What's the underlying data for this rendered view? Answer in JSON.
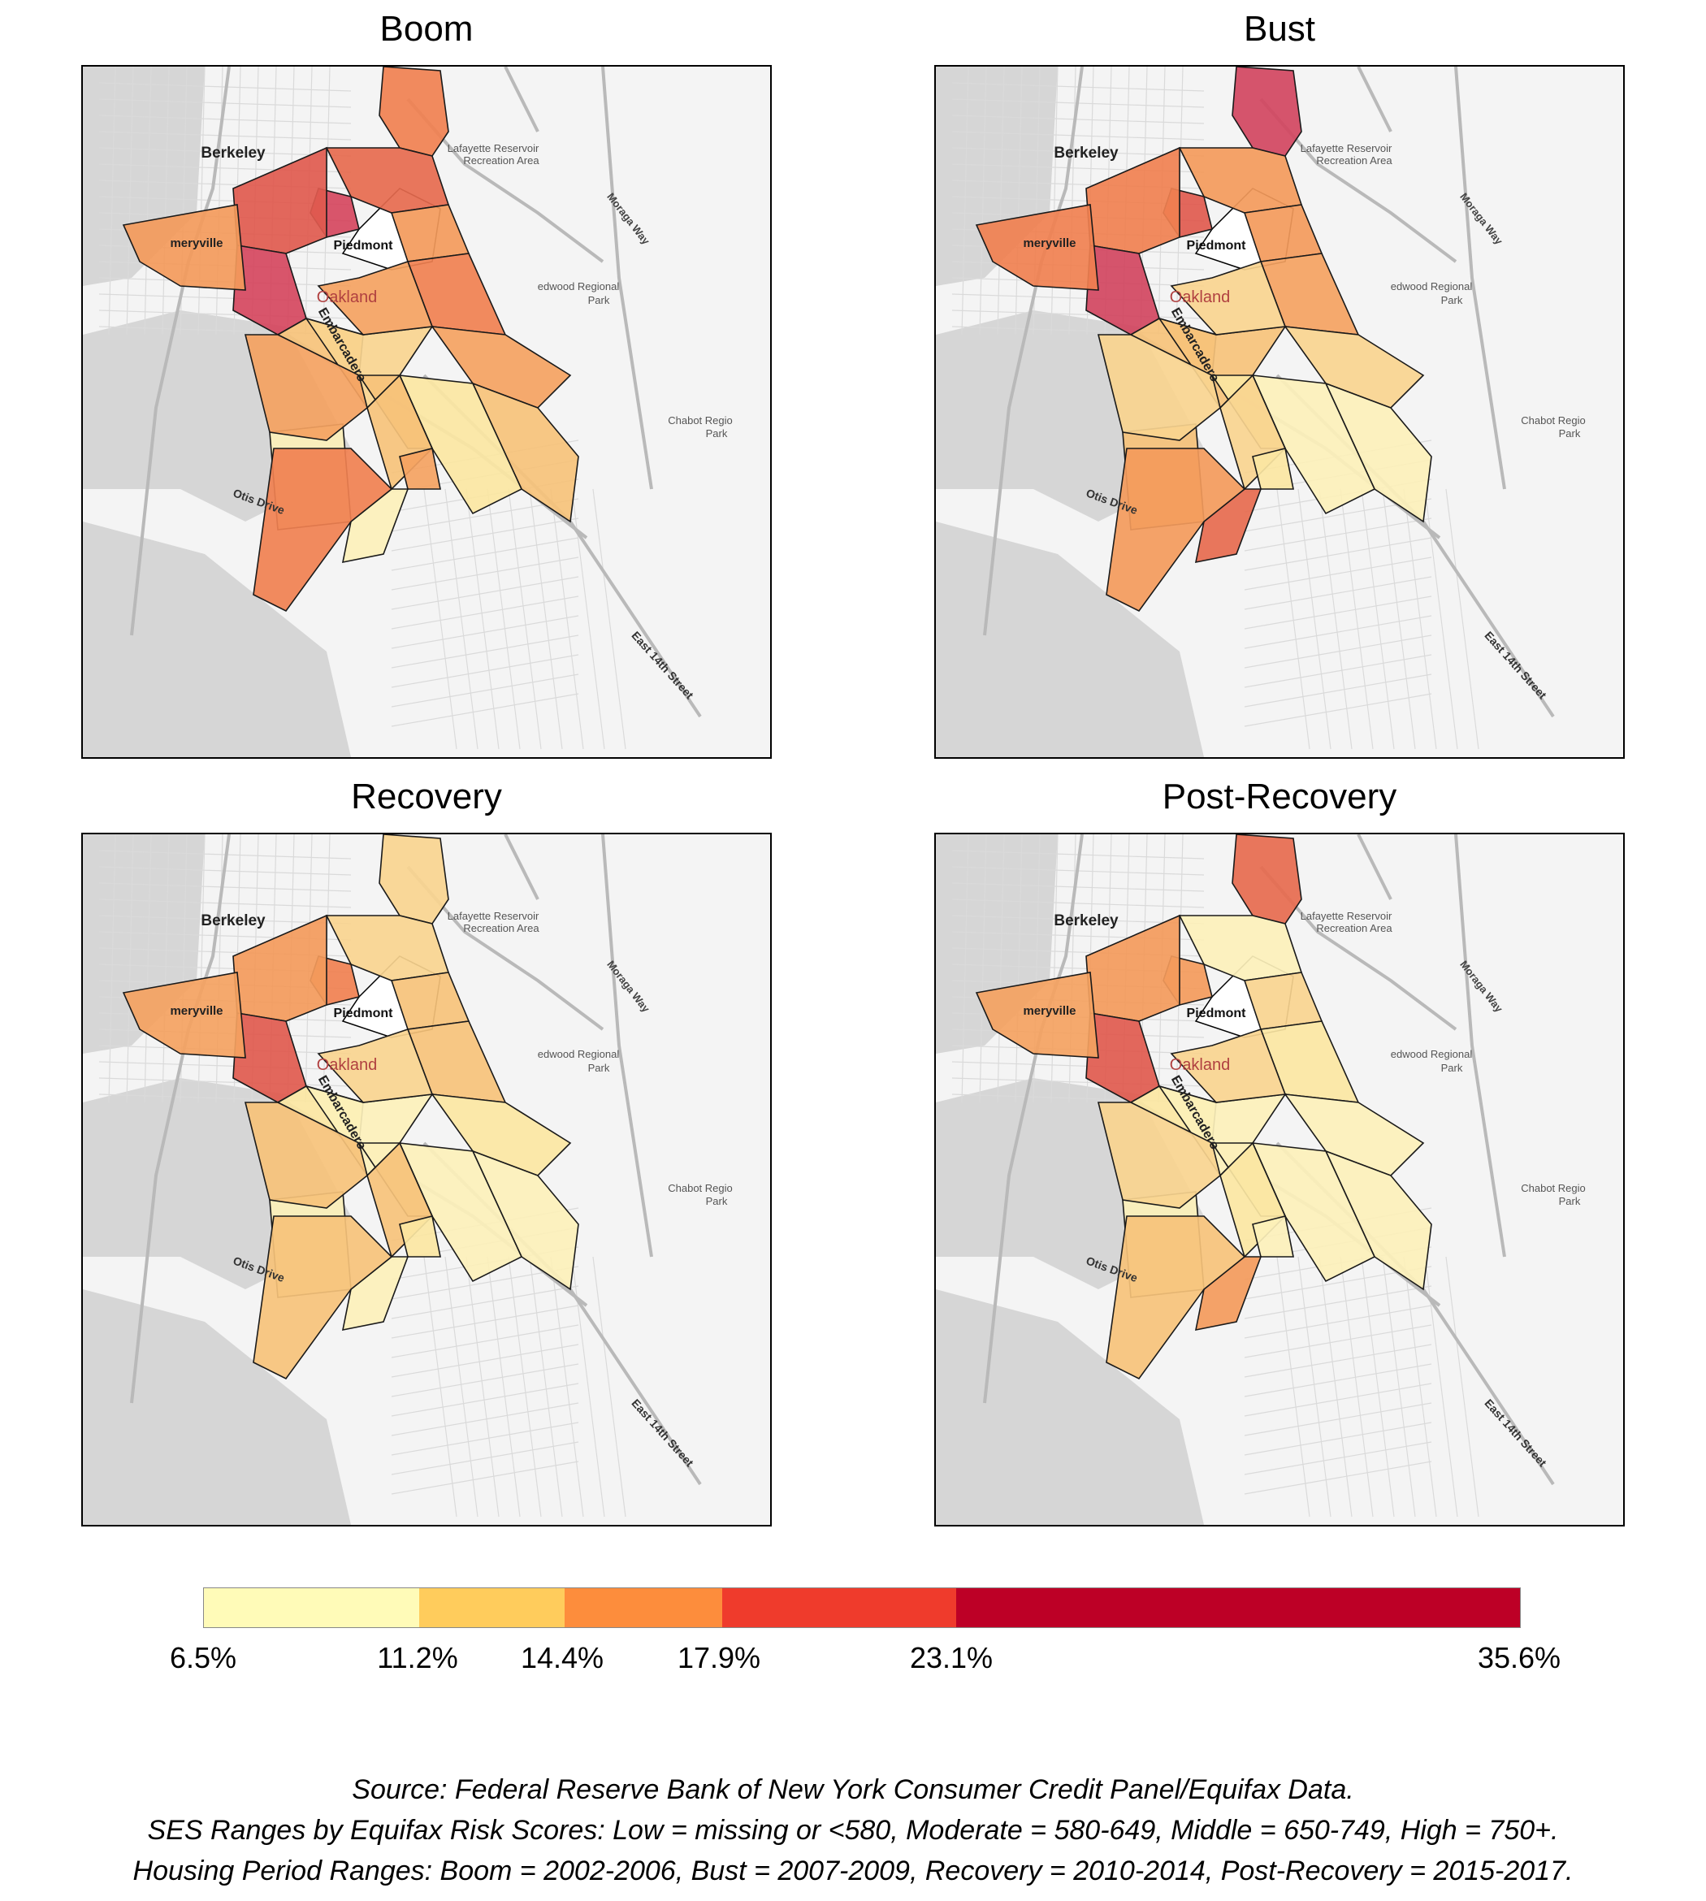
{
  "panels": [
    {
      "title": "Boom",
      "colors": [
        "#F08050",
        "#E66A4E",
        "#F39A5B",
        "#D5465E",
        "#F08050",
        "#F4A261",
        "#F6C27A",
        "#FBE6A2",
        "#E05A4E",
        "#D5465E",
        "#F39A5B",
        "#F6C27A",
        "#F8D48F",
        "#F4A261",
        "#F6C27A",
        "#F6C27A",
        "#F4A261",
        "#FCF0BA",
        "#FCF0BA",
        "#F4A261",
        "#F08050"
      ]
    },
    {
      "title": "Bust",
      "colors": [
        "#D14560",
        "#F39A5B",
        "#F39A5B",
        "#E05A4E",
        "#F4A261",
        "#F8D48F",
        "#FCF0BA",
        "#FCF0BA",
        "#F08050",
        "#D14560",
        "#F08050",
        "#F6C27A",
        "#F6C27A",
        "#F8D48F",
        "#FBE6A2",
        "#F8D48F",
        "#FBE6A2",
        "#E66A4E",
        "#F6C27A",
        "#F8D48F",
        "#F39A5B"
      ]
    },
    {
      "title": "Recovery",
      "colors": [
        "#F8D48F",
        "#F8D48F",
        "#F6C27A",
        "#F08050",
        "#F6C27A",
        "#FBE6A2",
        "#FCF0BA",
        "#FCF0BA",
        "#F39A5B",
        "#E05A4E",
        "#F4A261",
        "#FBE6A2",
        "#FCF0BA",
        "#F8D48F",
        "#FCF0BA",
        "#F6C27A",
        "#FBE6A2",
        "#FCF0BA",
        "#FCF0BA",
        "#F6C27A",
        "#F6C27A"
      ]
    },
    {
      "title": "Post-Recovery",
      "colors": [
        "#E66A4E",
        "#FCF0BA",
        "#F8D48F",
        "#F39A5B",
        "#FBE6A2",
        "#FCF0BA",
        "#FCF0BA",
        "#FCF0BA",
        "#F39A5B",
        "#E05A4E",
        "#F4A261",
        "#FBE6A2",
        "#FCF0BA",
        "#F8D48F",
        "#FCF0BA",
        "#FBE6A2",
        "#FCF0BA",
        "#F39A5B",
        "#FCF0BA",
        "#F8D48F",
        "#F6C27A"
      ]
    }
  ],
  "map_labels": {
    "berkeley": "Berkeley",
    "piedmont": "Piedmont",
    "emeryville": "meryville",
    "oakland": "Oakland",
    "lafayette_1": "Lafayette Reservoir",
    "lafayette_2": "Recreation Area",
    "moraga": "Moraga Way",
    "redwood_1": "edwood Regional",
    "redwood_2": "Park",
    "embarcadero": "Embarcadero",
    "otis": "Otis Drive",
    "chabot_1": "Chabot Regio",
    "chabot_2": "Park",
    "east14": "East 14th Street"
  },
  "legend": {
    "colors": [
      "#FFFBB8",
      "#FFCC5C",
      "#FD8D3C",
      "#EF3B2C",
      "#BD0026"
    ],
    "ticks": [
      "6.5%",
      "11.2%",
      "14.4%",
      "17.9%",
      "23.1%",
      "35.6%"
    ],
    "tick_values": [
      6.5,
      11.2,
      14.4,
      17.9,
      23.1,
      35.6
    ]
  },
  "caption": {
    "source": "Source: Federal Reserve Bank of New York Consumer Credit Panel/Equifax Data.",
    "ses": "SES Ranges by Equifax Risk Scores: Low = missing or <580, Moderate = 580-649, Middle = 650-749, High = 750+.",
    "periods": "Housing Period Ranges: Boom = 2002-2006, Bust = 2007-2009, Recovery = 2010-2014, Post-Recovery = 2015-2017."
  }
}
